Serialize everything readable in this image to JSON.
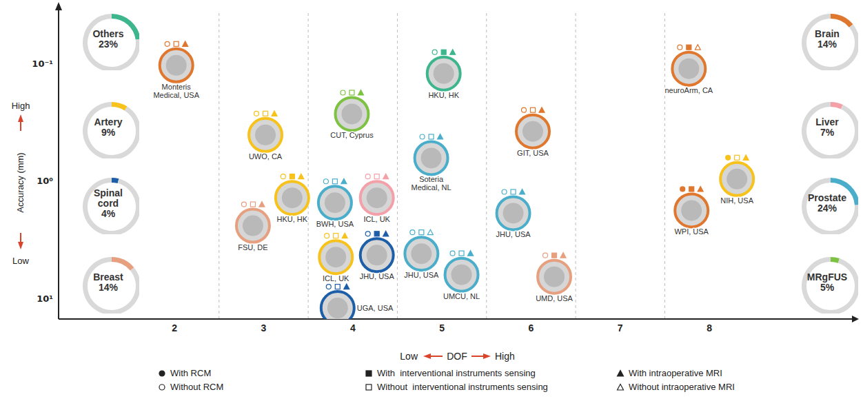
{
  "chart_data": [
    {
      "type": "scatter",
      "x_label": "DOF",
      "y_label": "Accuracy (mm)",
      "x_direction_labels": {
        "left": "Low",
        "right": "High"
      },
      "y_direction_labels": {
        "top": "High",
        "bottom": "Low"
      },
      "xlim": [
        0.7,
        9.6
      ],
      "xticks": [
        2,
        3,
        4,
        5,
        6,
        7,
        8
      ],
      "ylim": [
        0.035,
        15
      ],
      "yticks": [
        {
          "value": 0.1,
          "label": "10⁻¹"
        },
        {
          "value": 1,
          "label": "10⁰"
        },
        {
          "value": 10,
          "label": "10¹"
        }
      ],
      "log": "y",
      "grid": true,
      "legend": "bottom",
      "legend_items": [
        {
          "marker": "filled_circle",
          "label": "With RCM"
        },
        {
          "marker": "open_circle",
          "label": "Without RCM"
        },
        {
          "marker": "filled_square",
          "label": "With  interventional instruments sensing"
        },
        {
          "marker": "open_square",
          "label": "Without  interventional instruments sensing"
        },
        {
          "marker": "filled_triangle",
          "label": "With intraoperative MRI"
        },
        {
          "marker": "open_triangle",
          "label": "Without intraoperative MRI"
        }
      ],
      "points": [
        {
          "label": "Monteris Medical, USA",
          "x": 2.02,
          "y": 0.103,
          "category": "Brain",
          "markers": [
            "open_circle",
            "open_square",
            "filled_triangle"
          ]
        },
        {
          "label": "HKU, HK",
          "x": 5.02,
          "y": 0.121,
          "category": "Others",
          "markers": [
            "open_circle",
            "filled_square",
            "filled_triangle"
          ]
        },
        {
          "label": "neuroArm, CA",
          "x": 7.77,
          "y": 0.11,
          "category": "Brain",
          "markers": [
            "open_circle",
            "filled_square",
            "open_triangle"
          ]
        },
        {
          "label": "CUT, Cyprus",
          "x": 3.99,
          "y": 0.268,
          "category": "MRgFUS",
          "markers": [
            "open_circle",
            "open_square",
            "filled_triangle"
          ]
        },
        {
          "label": "UWO, CA",
          "x": 3.02,
          "y": 0.404,
          "category": "Artery",
          "markers": [
            "open_circle",
            "open_square",
            "filled_triangle"
          ]
        },
        {
          "label": "GIT, USA",
          "x": 6.02,
          "y": 0.377,
          "category": "Brain",
          "markers": [
            "open_circle",
            "open_square",
            "filled_triangle"
          ]
        },
        {
          "label": "Soteria Medical, NL",
          "x": 4.88,
          "y": 0.637,
          "category": "Prostate",
          "markers": [
            "open_circle",
            "open_square",
            "filled_triangle"
          ]
        },
        {
          "label": "NIH, USA",
          "x": 8.31,
          "y": 0.96,
          "category": "Artery",
          "markers": [
            "filled_circle",
            "open_square",
            "filled_triangle"
          ]
        },
        {
          "label": "HKU, HK",
          "x": 3.32,
          "y": 1.39,
          "category": "Artery",
          "markers": [
            "open_circle",
            "filled_square",
            "filled_triangle"
          ]
        },
        {
          "label": "BWH, USA",
          "x": 3.8,
          "y": 1.53,
          "category": "Prostate",
          "markers": [
            "open_circle",
            "open_square",
            "filled_triangle"
          ]
        },
        {
          "label": "ICL, UK",
          "x": 4.27,
          "y": 1.39,
          "category": "Liver",
          "markers": [
            "open_circle",
            "open_square",
            "filled_triangle"
          ]
        },
        {
          "label": "WPI, USA",
          "x": 7.8,
          "y": 1.78,
          "category": "Brain",
          "markers": [
            "filled_circle",
            "filled_square",
            "filled_triangle"
          ]
        },
        {
          "label": "JHU, USA",
          "x": 5.8,
          "y": 1.88,
          "category": "Prostate",
          "markers": [
            "open_circle",
            "open_square",
            "filled_triangle"
          ]
        },
        {
          "label": "FSU, DE",
          "x": 2.88,
          "y": 2.4,
          "category": "Breast",
          "markers": [
            "open_circle",
            "open_square",
            "filled_triangle"
          ]
        },
        {
          "label": "ICL, UK",
          "x": 3.81,
          "y": 4.45,
          "category": "Artery",
          "markers": [
            "open_circle",
            "open_square",
            "filled_triangle"
          ]
        },
        {
          "label": "JHU, USA",
          "x": 4.27,
          "y": 4.28,
          "category": "Spinal cord",
          "markers": [
            "open_circle",
            "filled_square",
            "filled_triangle"
          ]
        },
        {
          "label": "JHU, USA",
          "x": 4.77,
          "y": 4.16,
          "category": "Prostate",
          "markers": [
            "open_circle",
            "open_square",
            "open_triangle"
          ]
        },
        {
          "label": "UMCU, NL",
          "x": 5.22,
          "y": 6.28,
          "category": "Prostate",
          "markers": [
            "open_circle",
            "open_square",
            "filled_triangle"
          ]
        },
        {
          "label": "UMD, USA",
          "x": 6.26,
          "y": 6.54,
          "category": "Breast",
          "markers": [
            "open_circle",
            "filled_square",
            "filled_triangle"
          ]
        },
        {
          "label": "UGA, USA",
          "x": 3.83,
          "y": 12.1,
          "category": "Spinal cord",
          "markers": [
            "open_circle",
            "open_square",
            "filled_triangle"
          ]
        }
      ]
    },
    {
      "type": "donut",
      "categories": [
        "Others",
        "Artery",
        "Spinal cord",
        "Breast",
        "Brain",
        "Liver",
        "Prostate",
        "MRgFUS"
      ],
      "values": [
        23,
        9,
        4,
        14,
        14,
        7,
        24,
        5
      ],
      "value_labels": [
        "23%",
        "9%",
        "4%",
        "14%",
        "14%",
        "7%",
        "24%",
        "5%"
      ],
      "colors": [
        "#3db68d",
        "#f7c21b",
        "#1d5ea8",
        "#e6a07f",
        "#e0772e",
        "#f4a0a8",
        "#4aaecb",
        "#7dc242"
      ]
    }
  ]
}
